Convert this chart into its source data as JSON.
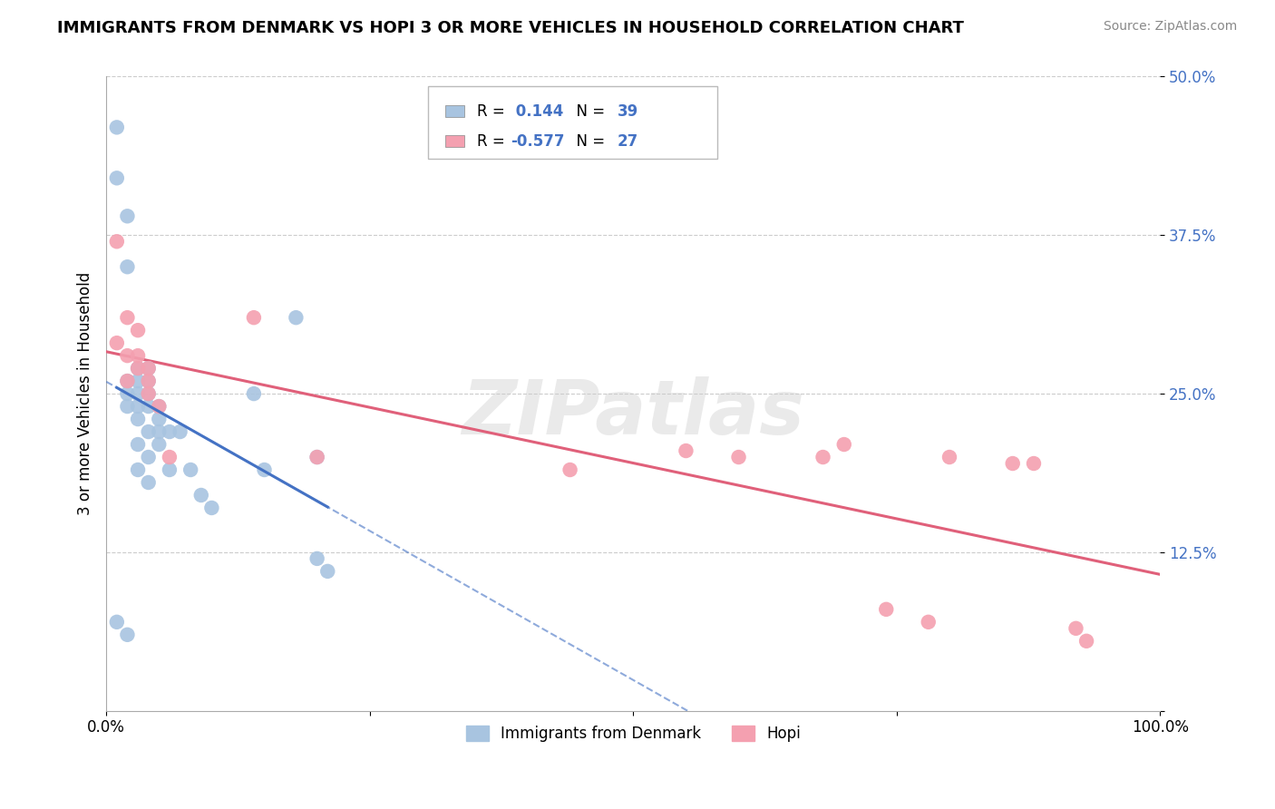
{
  "title": "IMMIGRANTS FROM DENMARK VS HOPI 3 OR MORE VEHICLES IN HOUSEHOLD CORRELATION CHART",
  "source": "Source: ZipAtlas.com",
  "ylabel": "3 or more Vehicles in Household",
  "xlim": [
    0.0,
    1.0
  ],
  "ylim": [
    0.0,
    0.5
  ],
  "xtick_positions": [
    0.0,
    0.25,
    0.5,
    0.75,
    1.0
  ],
  "xtick_labels": [
    "0.0%",
    "",
    "",
    "",
    "100.0%"
  ],
  "ytick_positions": [
    0.0,
    0.125,
    0.25,
    0.375,
    0.5
  ],
  "ytick_labels": [
    "",
    "12.5%",
    "25.0%",
    "37.5%",
    "50.0%"
  ],
  "legend_label1": "Immigrants from Denmark",
  "legend_label2": "Hopi",
  "r1": 0.144,
  "n1": 39,
  "r2": -0.577,
  "n2": 27,
  "color1": "#a8c4e0",
  "color2": "#f4a0b0",
  "line_color1": "#4472c4",
  "line_color2": "#e0607a",
  "watermark": "ZIPatlas",
  "denmark_x": [
    0.01,
    0.01,
    0.01,
    0.02,
    0.02,
    0.02,
    0.02,
    0.02,
    0.02,
    0.03,
    0.03,
    0.03,
    0.03,
    0.03,
    0.03,
    0.03,
    0.04,
    0.04,
    0.04,
    0.04,
    0.04,
    0.04,
    0.04,
    0.05,
    0.05,
    0.05,
    0.05,
    0.06,
    0.06,
    0.07,
    0.08,
    0.09,
    0.1,
    0.14,
    0.15,
    0.18,
    0.2,
    0.2,
    0.21
  ],
  "denmark_y": [
    0.46,
    0.42,
    0.07,
    0.39,
    0.35,
    0.26,
    0.25,
    0.24,
    0.06,
    0.27,
    0.26,
    0.25,
    0.24,
    0.23,
    0.21,
    0.19,
    0.27,
    0.26,
    0.25,
    0.24,
    0.22,
    0.2,
    0.18,
    0.24,
    0.23,
    0.22,
    0.21,
    0.22,
    0.19,
    0.22,
    0.19,
    0.17,
    0.16,
    0.25,
    0.19,
    0.31,
    0.2,
    0.12,
    0.11
  ],
  "hopi_x": [
    0.01,
    0.01,
    0.02,
    0.02,
    0.02,
    0.03,
    0.03,
    0.03,
    0.04,
    0.04,
    0.04,
    0.05,
    0.06,
    0.14,
    0.2,
    0.44,
    0.55,
    0.6,
    0.68,
    0.7,
    0.74,
    0.78,
    0.8,
    0.86,
    0.88,
    0.92,
    0.93
  ],
  "hopi_y": [
    0.37,
    0.29,
    0.31,
    0.28,
    0.26,
    0.3,
    0.28,
    0.27,
    0.27,
    0.26,
    0.25,
    0.24,
    0.2,
    0.31,
    0.2,
    0.19,
    0.205,
    0.2,
    0.2,
    0.21,
    0.08,
    0.07,
    0.2,
    0.195,
    0.195,
    0.065,
    0.055
  ]
}
